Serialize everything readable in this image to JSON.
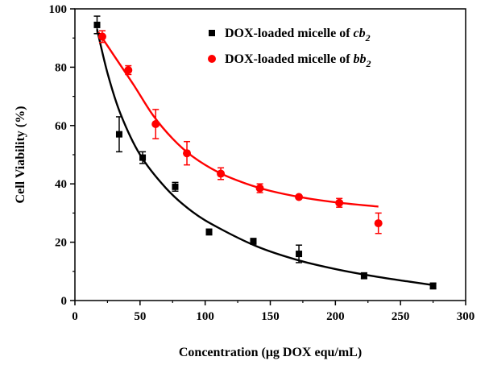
{
  "chart_data": {
    "type": "scatter",
    "xlabel": "Concentration (μg DOX equ/mL)",
    "ylabel": "Cell Viability (%)",
    "xlim": [
      0,
      300
    ],
    "ylim": [
      0,
      100
    ],
    "xticks": [
      0,
      50,
      100,
      150,
      200,
      250,
      300
    ],
    "yticks": [
      0,
      20,
      40,
      60,
      80,
      100
    ],
    "grid": false,
    "legend_position": "top-right",
    "series": [
      {
        "name": "DOX-loaded micelle of cb2",
        "legend_prefix": "DOX-loaded micelle of ",
        "legend_italic": "cb",
        "legend_sub": "2",
        "color": "#000000",
        "marker": "square",
        "points": [
          {
            "x": 17,
            "y": 94.5,
            "err": 3
          },
          {
            "x": 34,
            "y": 57,
            "err": 6
          },
          {
            "x": 52,
            "y": 49,
            "err": 2
          },
          {
            "x": 77,
            "y": 39,
            "err": 1.5
          },
          {
            "x": 103,
            "y": 23.5,
            "err": 1
          },
          {
            "x": 137,
            "y": 20.3,
            "err": 1
          },
          {
            "x": 172,
            "y": 16,
            "err": 3
          },
          {
            "x": 222,
            "y": 8.5,
            "err": 1
          },
          {
            "x": 275,
            "y": 5,
            "err": 1
          }
        ],
        "fit": [
          {
            "x": 17,
            "y": 93
          },
          {
            "x": 25,
            "y": 78
          },
          {
            "x": 35,
            "y": 64
          },
          {
            "x": 50,
            "y": 50
          },
          {
            "x": 70,
            "y": 38.5
          },
          {
            "x": 90,
            "y": 30.5
          },
          {
            "x": 110,
            "y": 25
          },
          {
            "x": 140,
            "y": 18.5
          },
          {
            "x": 170,
            "y": 14
          },
          {
            "x": 200,
            "y": 10.8
          },
          {
            "x": 230,
            "y": 8.3
          },
          {
            "x": 255,
            "y": 6.6
          },
          {
            "x": 275,
            "y": 5.3
          }
        ]
      },
      {
        "name": "DOX-loaded micelle of bb2",
        "legend_prefix": "DOX-loaded micelle of ",
        "legend_italic": "bb",
        "legend_sub": "2",
        "color": "#ff0000",
        "marker": "circle",
        "points": [
          {
            "x": 21,
            "y": 90.5,
            "err": 2
          },
          {
            "x": 41,
            "y": 79,
            "err": 1.5
          },
          {
            "x": 62,
            "y": 60.5,
            "err": 5
          },
          {
            "x": 86,
            "y": 50.5,
            "err": 4
          },
          {
            "x": 112,
            "y": 43.5,
            "err": 2
          },
          {
            "x": 142,
            "y": 38.5,
            "err": 1.5
          },
          {
            "x": 172,
            "y": 35.5,
            "err": 0.5
          },
          {
            "x": 203,
            "y": 33.5,
            "err": 1.5
          },
          {
            "x": 233,
            "y": 26.5,
            "err": 3.5
          }
        ],
        "fit": [
          {
            "x": 18,
            "y": 92
          },
          {
            "x": 30,
            "y": 84
          },
          {
            "x": 45,
            "y": 74
          },
          {
            "x": 60,
            "y": 63.5
          },
          {
            "x": 75,
            "y": 55.5
          },
          {
            "x": 90,
            "y": 49.5
          },
          {
            "x": 110,
            "y": 44
          },
          {
            "x": 130,
            "y": 40.3
          },
          {
            "x": 150,
            "y": 37.6
          },
          {
            "x": 175,
            "y": 35.3
          },
          {
            "x": 200,
            "y": 33.7
          },
          {
            "x": 233,
            "y": 32.2
          }
        ]
      }
    ]
  }
}
